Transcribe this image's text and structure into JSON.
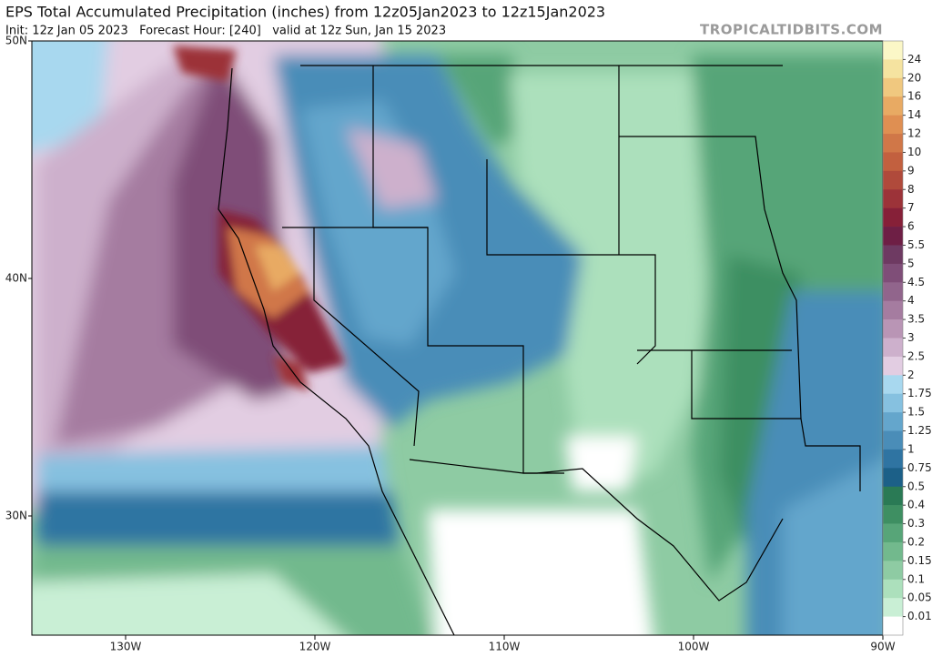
{
  "header": {
    "title": "EPS Total Accumulated Precipitation (inches) from 12z05Jan2023 to 12z15Jan2023",
    "subtitle": "Init: 12z Jan 05 2023   Forecast Hour: [240]   valid at 12z Sun, Jan 15 2023",
    "watermark": "TROPICALTIDBITS.COM"
  },
  "map": {
    "lat_labels": [
      "50N",
      "40N",
      "30N"
    ],
    "lon_labels": [
      "130W",
      "120W",
      "110W",
      "100W",
      "90W"
    ]
  },
  "colorbar": {
    "levels": [
      24,
      20,
      16,
      14,
      12,
      10,
      9,
      8,
      7,
      6,
      5.5,
      5,
      4.5,
      4,
      3.5,
      3,
      2.5,
      2,
      1.75,
      1.5,
      1.25,
      1,
      0.75,
      0.5,
      0.4,
      0.3,
      0.2,
      0.15,
      0.1,
      0.05,
      0.01
    ],
    "colors": [
      "#fbf7c7",
      "#f5e3a0",
      "#f0c87f",
      "#e8aa63",
      "#df8f52",
      "#d07748",
      "#c2603f",
      "#b04a3b",
      "#9c3339",
      "#862038",
      "#6e1f45",
      "#6e3a62",
      "#7f4e78",
      "#91658c",
      "#a57ca0",
      "#b995b5",
      "#cdb0cc",
      "#e2cde2",
      "#a8d8ef",
      "#86c1e0",
      "#64a6cc",
      "#4a8db8",
      "#2f74a2",
      "#1c6088",
      "#2a7a55",
      "#3e8f62",
      "#57a578",
      "#72b98d",
      "#8ecba3",
      "#ace0bc",
      "#c9efd5",
      "#ffffff"
    ]
  }
}
